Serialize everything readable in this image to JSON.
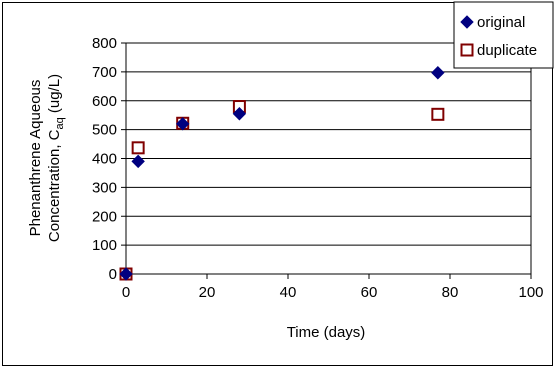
{
  "chart_data": {
    "type": "scatter",
    "xlabel": "Time (days)",
    "ylabel_line1": "Phenanthrene Aqueous",
    "ylabel_line2_prefix": "Concentration, C",
    "ylabel_subscript": "aq",
    "ylabel_line2_suffix": "  (ug/L)",
    "xlim": [
      0,
      100
    ],
    "ylim": [
      0,
      800
    ],
    "x_ticks": [
      0,
      20,
      40,
      60,
      80,
      100
    ],
    "y_ticks": [
      0,
      100,
      200,
      300,
      400,
      500,
      600,
      700,
      800
    ],
    "grid": "horizontal",
    "legend_position": "top-right",
    "series": [
      {
        "name": "original",
        "marker": "diamond",
        "color": "#000080",
        "points": [
          [
            0,
            0
          ],
          [
            3,
            390
          ],
          [
            14,
            520
          ],
          [
            28,
            555
          ],
          [
            77,
            697
          ]
        ]
      },
      {
        "name": "duplicate",
        "marker": "square-open",
        "color": "#800000",
        "points": [
          [
            0,
            0
          ],
          [
            3,
            437
          ],
          [
            14,
            522
          ],
          [
            28,
            580
          ],
          [
            77,
            553
          ]
        ]
      }
    ]
  }
}
